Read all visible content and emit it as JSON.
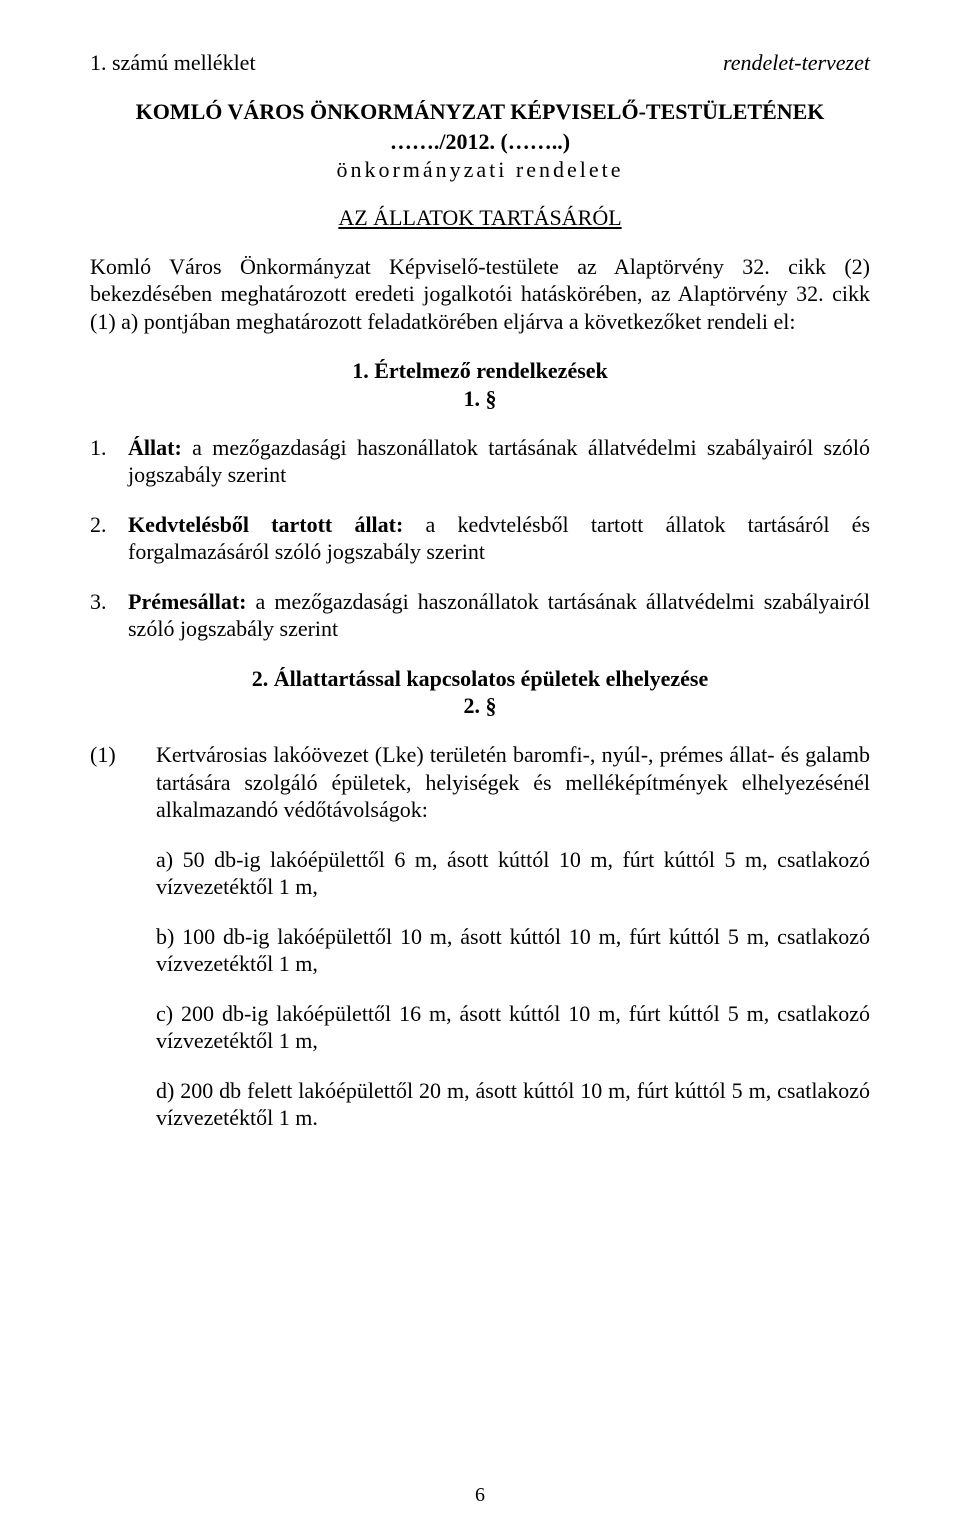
{
  "header": {
    "left": "1. számú melléklet",
    "right": "rendelet-tervezet"
  },
  "title": {
    "main": "KOMLÓ VÁROS ÖNKORMÁNYZAT KÉPVISELŐ-TESTÜLETÉNEK",
    "sub": "……./2012. (……..)",
    "spaced": "önkormányzati rendelete"
  },
  "subtitle": "AZ ÁLLATOK TARTÁSÁRÓL",
  "intro": "Komló Város Önkormányzat Képviselő-testülete az Alaptörvény 32. cikk (2) bekezdésében meghatározott eredeti jogalkotói hatáskörében, az Alaptörvény 32. cikk (1) a) pontjában meghatározott feladatkörében eljárva a következőket rendeli el:",
  "section1": {
    "head": "1. Értelmező rendelkezések",
    "num": "1. §"
  },
  "defs": {
    "d1": {
      "marker": "1.",
      "label": "Állat:",
      "text": " a mezőgazdasági haszonállatok tartásának állatvédelmi szabályairól szóló jogszabály szerint"
    },
    "d2": {
      "marker": "2.",
      "label": "Kedvtelésből tartott állat:",
      "text": " a kedvtelésből tartott állatok tartásáról és forgalmazásáról szóló jogszabály szerint"
    },
    "d3": {
      "marker": "3.",
      "label": "Prémesállat:",
      "text": " a mezőgazdasági haszonállatok tartásának állatvédelmi szabályairól szóló jogszabály szerint"
    }
  },
  "section2": {
    "head": "2. Állattartással kapcsolatos épületek elhelyezése",
    "num": "2. §"
  },
  "p1": {
    "marker": "(1)",
    "text": "Kertvárosias lakóövezet (Lke) területén baromfi-, nyúl-, prémes állat- és galamb tartására szolgáló épületek, helyiségek és melléképítmények elhelyezésénél alkalmazandó védőtávolságok:"
  },
  "subs": {
    "a": "a) 50 db-ig lakóépülettől 6 m, ásott kúttól 10 m, fúrt kúttól 5 m, csatlakozó vízvezetéktől 1 m,",
    "b": "b) 100 db-ig lakóépülettől 10 m, ásott kúttól 10 m, fúrt kúttól 5 m, csatlakozó vízvezetéktől 1 m,",
    "c": "c) 200 db-ig lakóépülettől 16 m, ásott kúttól 10 m, fúrt kúttól 5 m, csatlakozó vízvezetéktől 1 m,",
    "d": "d) 200 db felett lakóépülettől 20 m, ásott kúttól 10 m, fúrt kúttól 5 m, csatlakozó vízvezetéktől 1 m."
  },
  "pageNumber": "6"
}
